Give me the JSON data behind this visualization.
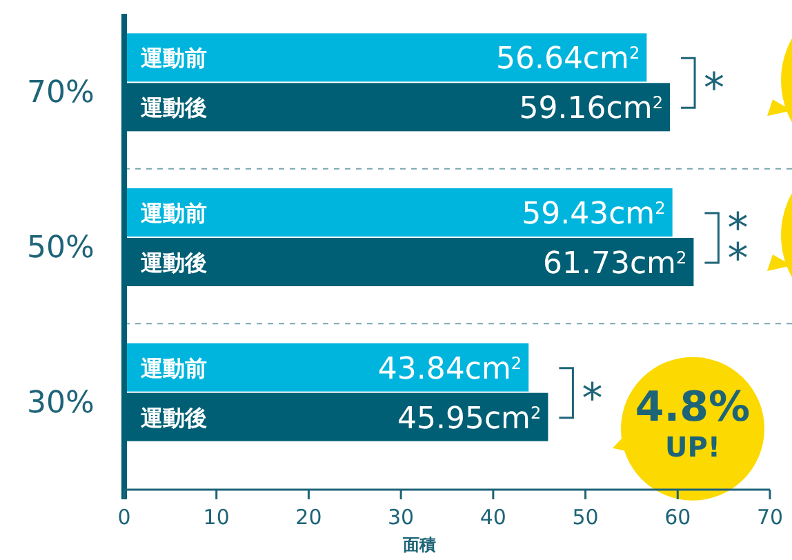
{
  "chart_data": {
    "type": "bar",
    "orientation": "horizontal",
    "categories": [
      "70%",
      "50%",
      "30%"
    ],
    "series": [
      {
        "name": "運動前",
        "color": "#00b5dd",
        "values": [
          56.64,
          59.43,
          43.84
        ],
        "value_labels": [
          "56.64cm$^{2}$",
          "59.43cm$^{2}$",
          "43.84cm$^{2}$"
        ]
      },
      {
        "name": "運動後",
        "color": "#005f74",
        "values": [
          59.16,
          61.73,
          45.95
        ],
        "value_labels": [
          "59.16cm$^{2}$",
          "61.73cm$^{2}$",
          "45.95cm$^{2}$"
        ]
      }
    ],
    "xlabel": "面積",
    "xlim": [
      0,
      70
    ],
    "xticks": [
      0,
      10,
      20,
      30,
      40,
      50,
      60,
      70
    ],
    "grid": false,
    "annotations": [
      "*",
      "**",
      "*",
      "4.8% UP!"
    ]
  }
}
